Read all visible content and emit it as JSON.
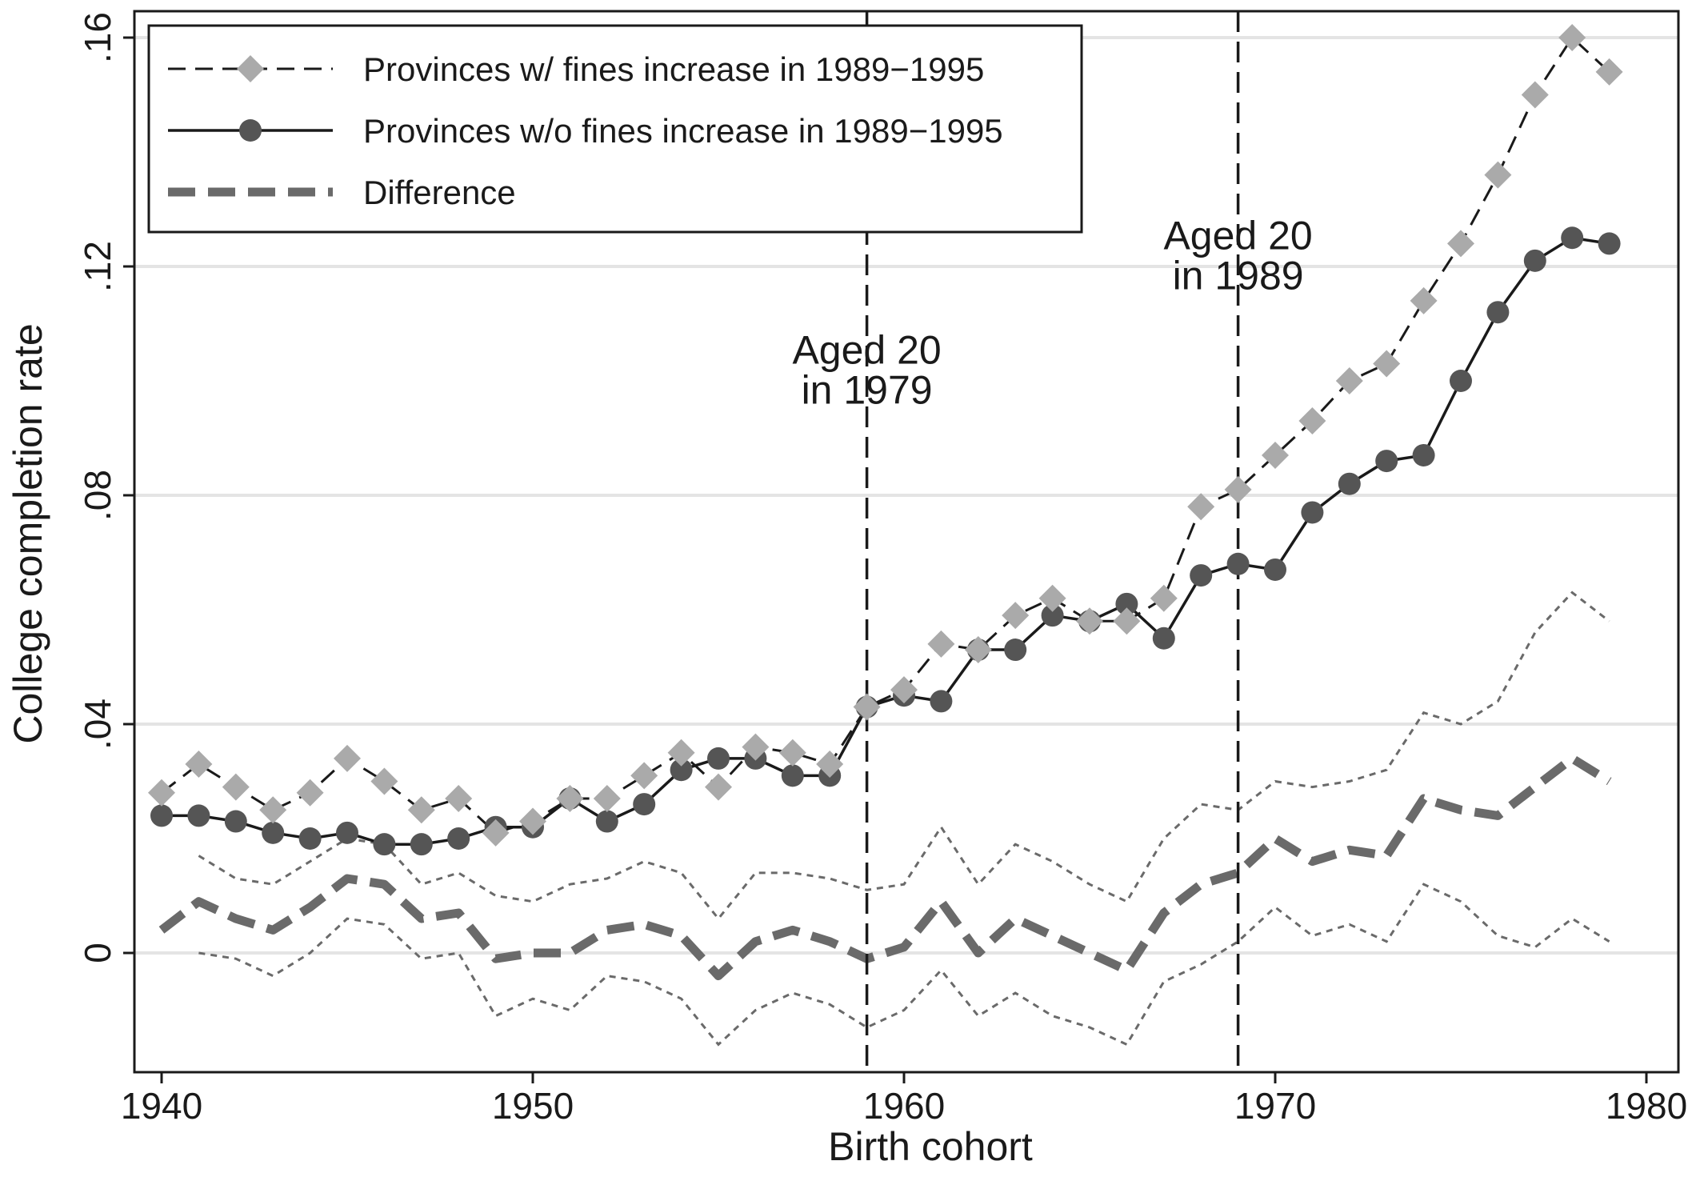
{
  "chart_data": {
    "type": "line",
    "title": "",
    "xlabel": "Birth cohort",
    "ylabel": "College completion rate",
    "xlim": [
      1940,
      1980
    ],
    "ylim": [
      -0.02,
      0.16
    ],
    "x_ticks": [
      1940,
      1950,
      1960,
      1970,
      1980
    ],
    "x_tick_labels": [
      "1940",
      "1950",
      "1960",
      "1970",
      "1980"
    ],
    "y_ticks": [
      0,
      0.04,
      0.08,
      0.12,
      0.16
    ],
    "y_tick_labels": [
      "0",
      ".04",
      ".08",
      ".12",
      ".16"
    ],
    "grid": "horizontal",
    "legend_position": "top-left",
    "colors": {
      "treated": "#aaaaaa",
      "control": "#555555",
      "difference": "#6a6a6a",
      "ci": "#6a6a6a",
      "grid": "#e4e4e4"
    },
    "series": [
      {
        "name": "Provinces w/ fines increase in 1989−1995",
        "style": "dashed-diamond",
        "x": [
          1940,
          1941,
          1942,
          1943,
          1944,
          1945,
          1946,
          1947,
          1948,
          1949,
          1950,
          1951,
          1952,
          1953,
          1954,
          1955,
          1956,
          1957,
          1958,
          1959,
          1960,
          1961,
          1962,
          1963,
          1964,
          1965,
          1966,
          1967,
          1968,
          1969,
          1970,
          1971,
          1972,
          1973,
          1974,
          1975,
          1976,
          1977,
          1978,
          1979
        ],
        "values": [
          0.028,
          0.033,
          0.029,
          0.025,
          0.028,
          0.034,
          0.03,
          0.025,
          0.027,
          0.021,
          0.023,
          0.027,
          0.027,
          0.031,
          0.035,
          0.029,
          0.036,
          0.035,
          0.033,
          0.043,
          0.046,
          0.054,
          0.053,
          0.059,
          0.062,
          0.058,
          0.058,
          0.062,
          0.078,
          0.081,
          0.087,
          0.093,
          0.1,
          0.103,
          0.114,
          0.124,
          0.136,
          0.15,
          0.16,
          0.154
        ]
      },
      {
        "name": "Provinces w/o fines increase in 1989−1995",
        "style": "solid-circle",
        "x": [
          1940,
          1941,
          1942,
          1943,
          1944,
          1945,
          1946,
          1947,
          1948,
          1949,
          1950,
          1951,
          1952,
          1953,
          1954,
          1955,
          1956,
          1957,
          1958,
          1959,
          1960,
          1961,
          1962,
          1963,
          1964,
          1965,
          1966,
          1967,
          1968,
          1969,
          1970,
          1971,
          1972,
          1973,
          1974,
          1975,
          1976,
          1977,
          1978,
          1979
        ],
        "values": [
          0.024,
          0.024,
          0.023,
          0.021,
          0.02,
          0.021,
          0.019,
          0.019,
          0.02,
          0.022,
          0.022,
          0.027,
          0.023,
          0.026,
          0.032,
          0.034,
          0.034,
          0.031,
          0.031,
          0.043,
          0.045,
          0.044,
          0.053,
          0.053,
          0.059,
          0.058,
          0.061,
          0.055,
          0.066,
          0.068,
          0.067,
          0.077,
          0.082,
          0.086,
          0.087,
          0.1,
          0.112,
          0.121,
          0.125,
          0.124
        ]
      },
      {
        "name": "Difference",
        "style": "thick-dashed",
        "x": [
          1940,
          1941,
          1942,
          1943,
          1944,
          1945,
          1946,
          1947,
          1948,
          1949,
          1950,
          1951,
          1952,
          1953,
          1954,
          1955,
          1956,
          1957,
          1958,
          1959,
          1960,
          1961,
          1962,
          1963,
          1964,
          1965,
          1966,
          1967,
          1968,
          1969,
          1970,
          1971,
          1972,
          1973,
          1974,
          1975,
          1976,
          1977,
          1978,
          1979
        ],
        "values": [
          0.004,
          0.009,
          0.006,
          0.004,
          0.008,
          0.013,
          0.012,
          0.006,
          0.007,
          -0.001,
          0.0,
          0.0,
          0.004,
          0.005,
          0.003,
          -0.004,
          0.002,
          0.004,
          0.002,
          -0.001,
          0.001,
          0.009,
          0.0,
          0.006,
          0.003,
          0.0,
          -0.003,
          0.007,
          0.012,
          0.014,
          0.02,
          0.016,
          0.018,
          0.017,
          0.027,
          0.025,
          0.024,
          0.029,
          0.034,
          0.03
        ]
      },
      {
        "name": "",
        "style": "thin-dotted-upper",
        "x": [
          1941,
          1942,
          1943,
          1944,
          1945,
          1946,
          1947,
          1948,
          1949,
          1950,
          1951,
          1952,
          1953,
          1954,
          1955,
          1956,
          1957,
          1958,
          1959,
          1960,
          1961,
          1962,
          1963,
          1964,
          1965,
          1966,
          1967,
          1968,
          1969,
          1970,
          1971,
          1972,
          1973,
          1974,
          1975,
          1976,
          1977,
          1978,
          1979
        ],
        "values": [
          0.017,
          0.013,
          0.012,
          0.016,
          0.02,
          0.019,
          0.012,
          0.014,
          0.01,
          0.009,
          0.012,
          0.013,
          0.016,
          0.014,
          0.006,
          0.014,
          0.014,
          0.013,
          0.011,
          0.012,
          0.022,
          0.012,
          0.019,
          0.016,
          0.012,
          0.009,
          0.02,
          0.026,
          0.025,
          0.03,
          0.029,
          0.03,
          0.032,
          0.042,
          0.04,
          0.044,
          0.056,
          0.063,
          0.058
        ]
      },
      {
        "name": "",
        "style": "thin-dotted-lower",
        "x": [
          1941,
          1942,
          1943,
          1944,
          1945,
          1946,
          1947,
          1948,
          1949,
          1950,
          1951,
          1952,
          1953,
          1954,
          1955,
          1956,
          1957,
          1958,
          1959,
          1960,
          1961,
          1962,
          1963,
          1964,
          1965,
          1966,
          1967,
          1968,
          1969,
          1970,
          1971,
          1972,
          1973,
          1974,
          1975,
          1976,
          1977,
          1978,
          1979
        ],
        "values": [
          0.0,
          -0.001,
          -0.004,
          0.0,
          0.006,
          0.005,
          -0.001,
          0.0,
          -0.011,
          -0.008,
          -0.01,
          -0.004,
          -0.005,
          -0.008,
          -0.016,
          -0.01,
          -0.007,
          -0.009,
          -0.013,
          -0.01,
          -0.003,
          -0.011,
          -0.007,
          -0.011,
          -0.013,
          -0.016,
          -0.005,
          -0.002,
          0.002,
          0.008,
          0.003,
          0.005,
          0.002,
          0.012,
          0.009,
          0.003,
          0.001,
          0.006,
          0.002
        ]
      }
    ],
    "vlines": [
      {
        "x": 1959,
        "label_line1": "Aged 20",
        "label_line2": "in 1979",
        "label_y": [
          0.103,
          0.096
        ]
      },
      {
        "x": 1969,
        "label_line1": "Aged 20",
        "label_line2": "in 1989",
        "label_y": [
          0.123,
          0.116
        ]
      }
    ],
    "legend": [
      {
        "label": "Provinces w/ fines increase in 1989−1995",
        "style": "dashed-diamond"
      },
      {
        "label": "Provinces w/o fines increase in 1989−1995",
        "style": "solid-circle"
      },
      {
        "label": "Difference",
        "style": "thick-dashed"
      }
    ]
  }
}
